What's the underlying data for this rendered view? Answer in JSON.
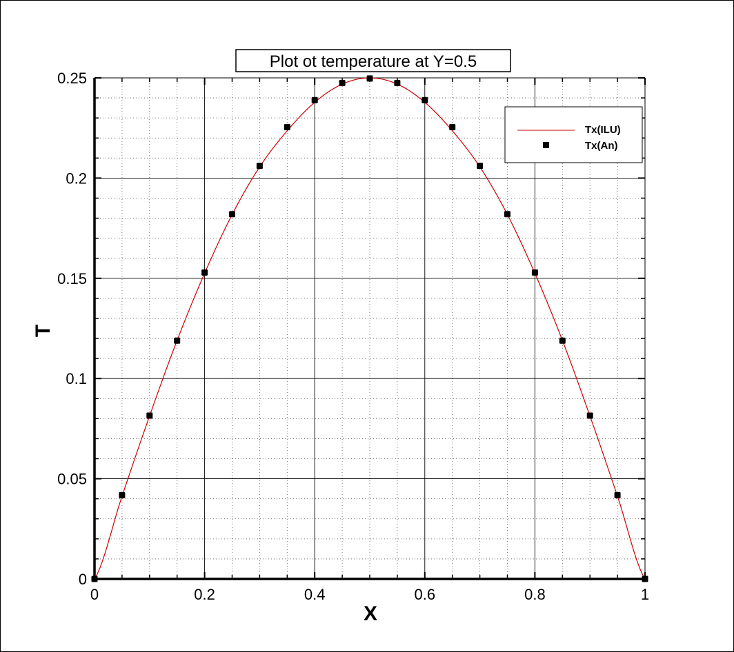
{
  "chart_data": {
    "type": "line",
    "title": "Plot ot temperature at Y=0.5",
    "xlabel": "X",
    "ylabel": "T",
    "xlim": [
      0,
      1
    ],
    "ylim": [
      0,
      0.25
    ],
    "x_ticks": [
      "0",
      "0.2",
      "0.4",
      "0.6",
      "0.8",
      "1"
    ],
    "y_ticks": [
      "0",
      "0.05",
      "0.1",
      "0.15",
      "0.2",
      "0.25"
    ],
    "grid": true,
    "legend_position": "top-right",
    "series": [
      {
        "name": "Tx(ILU)",
        "style": "line",
        "color": "#cc0000",
        "x": [
          0,
          0.05,
          0.1,
          0.15,
          0.2,
          0.25,
          0.3,
          0.35,
          0.4,
          0.45,
          0.5,
          0.55,
          0.6,
          0.65,
          0.7,
          0.75,
          0.8,
          0.85,
          0.9,
          0.95,
          1
        ],
        "y": [
          0,
          0.0413,
          0.0813,
          0.119,
          0.1525,
          0.1818,
          0.2056,
          0.2236,
          0.2378,
          0.2469,
          0.25,
          0.2469,
          0.2378,
          0.2236,
          0.2056,
          0.1818,
          0.1525,
          0.119,
          0.0813,
          0.0413,
          0
        ]
      },
      {
        "name": "Tx(An)",
        "style": "scatter",
        "color": "#000000",
        "x": [
          0,
          0.05,
          0.1,
          0.15,
          0.2,
          0.25,
          0.3,
          0.35,
          0.4,
          0.45,
          0.5,
          0.55,
          0.6,
          0.65,
          0.7,
          0.75,
          0.8,
          0.85,
          0.9,
          0.95,
          1
        ],
        "y": [
          0,
          0.0418,
          0.0815,
          0.1189,
          0.1529,
          0.182,
          0.2061,
          0.2254,
          0.2389,
          0.2474,
          0.2497,
          0.2474,
          0.2389,
          0.2254,
          0.2061,
          0.182,
          0.1529,
          0.1189,
          0.0815,
          0.0418,
          0
        ]
      }
    ]
  }
}
